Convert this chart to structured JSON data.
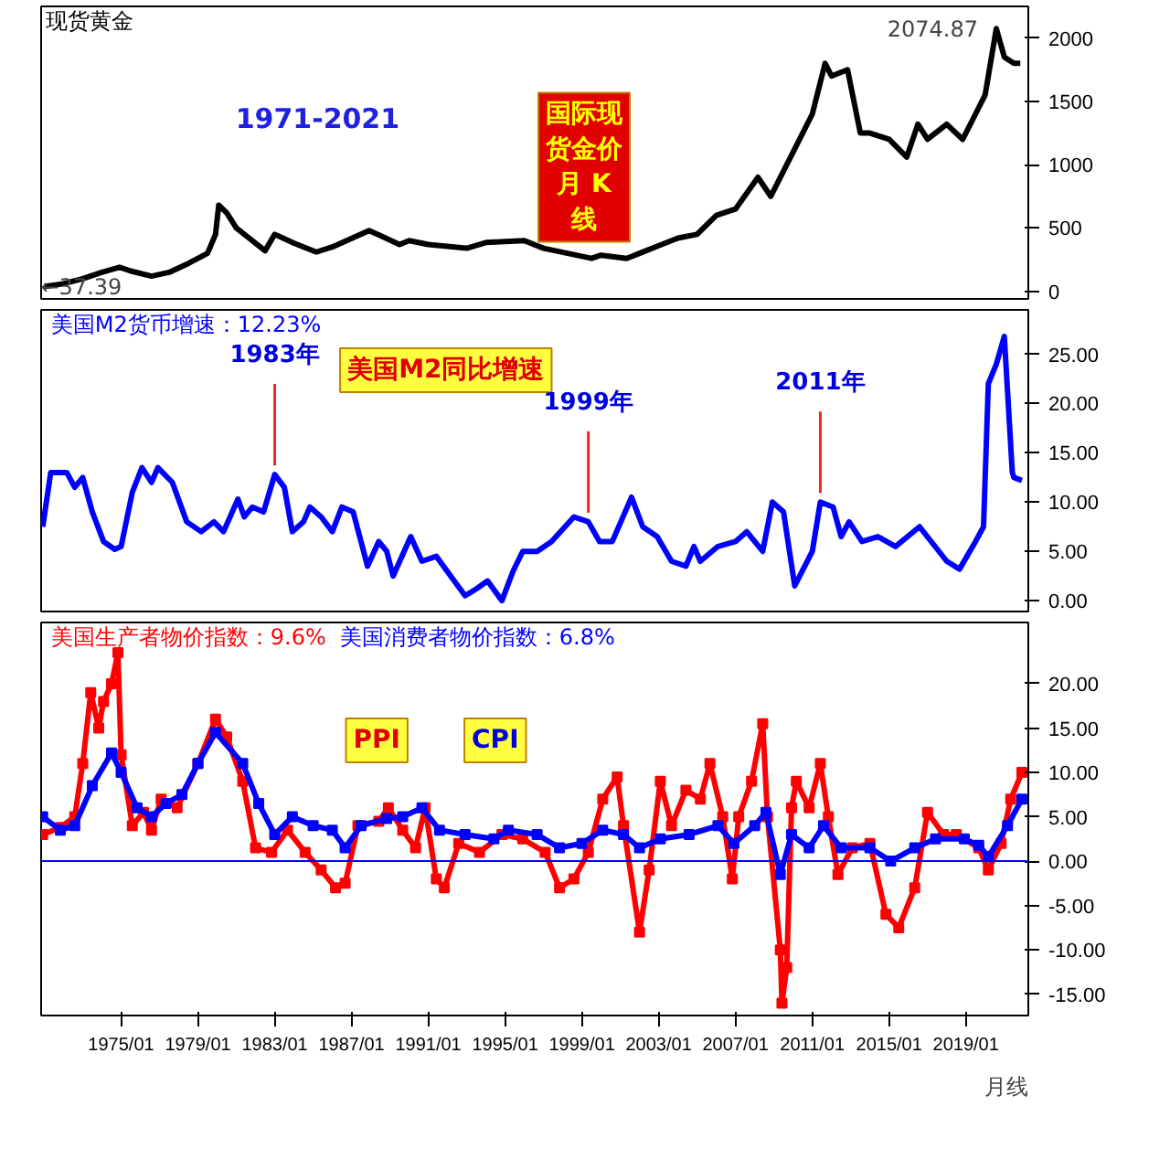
{
  "chart_data": [
    {
      "type": "line",
      "title": "现货黄金",
      "xlim": [
        "1970-11",
        "2022-04"
      ],
      "ylim": [
        -60,
        2250
      ],
      "yticks": [
        0,
        500,
        1000,
        1500,
        2000
      ],
      "tick_labels": "y",
      "grid": false,
      "annotations": [
        "1971-2021",
        "国际现货金价月 K线",
        {
          "text": "2074.87",
          "x": "2020-08",
          "y": 2075
        },
        {
          "text": "←37.39",
          "x": "1971-01",
          "y": 37
        }
      ],
      "series": [
        {
          "color": "#000000",
          "x": [
            "1971-01",
            "1972-01",
            "1973-01",
            "1974-01",
            "1974-12",
            "1975-07",
            "1976-08",
            "1977-07",
            "1978-07",
            "1979-07",
            "1979-12",
            "1980-02",
            "1980-07",
            "1981-01",
            "1982-07",
            "1983-01",
            "1984-01",
            "1985-03",
            "1986-01",
            "1987-12",
            "1988-07",
            "1989-07",
            "1990-01",
            "1991-01",
            "1993-01",
            "1994-01",
            "1996-01",
            "1997-01",
            "1999-07",
            "2000-01",
            "2001-05",
            "2002-01",
            "2003-01",
            "2004-01",
            "2005-01",
            "2006-01",
            "2007-01",
            "2008-03",
            "2008-11",
            "2009-07",
            "2010-01",
            "2011-01",
            "2011-09",
            "2012-01",
            "2012-11",
            "2013-07",
            "2014-01",
            "2015-01",
            "2015-12",
            "2016-07",
            "2017-01",
            "2018-01",
            "2018-11",
            "2019-07",
            "2020-01",
            "2020-08",
            "2021-01",
            "2021-07",
            "2021-11"
          ],
          "values": [
            37,
            60,
            100,
            150,
            190,
            160,
            120,
            150,
            220,
            300,
            450,
            680,
            620,
            500,
            320,
            450,
            380,
            310,
            350,
            480,
            440,
            370,
            400,
            370,
            340,
            385,
            400,
            340,
            260,
            285,
            260,
            300,
            360,
            420,
            450,
            600,
            650,
            900,
            750,
            950,
            1100,
            1400,
            1800,
            1700,
            1750,
            1250,
            1250,
            1200,
            1060,
            1320,
            1200,
            1320,
            1200,
            1400,
            1550,
            2075,
            1850,
            1800,
            1800
          ]
        }
      ]
    },
    {
      "type": "line",
      "xlim": [
        "1970-11",
        "2022-04"
      ],
      "ylim": [
        -1.1,
        29.5
      ],
      "yticks": [
        {
          "value": 0,
          "label": "0.00"
        },
        {
          "value": 5,
          "label": "5.00"
        },
        {
          "value": 10,
          "label": "10.00"
        },
        {
          "value": 15,
          "label": "15.00"
        },
        {
          "value": 20,
          "label": "20.00"
        },
        {
          "value": 25,
          "label": "25.00"
        }
      ],
      "tick_labels": "y",
      "grid": false,
      "legend": "top left",
      "annotations": [
        "美国M2同比增速",
        {
          "text": "1983年",
          "x": "1983-01",
          "y": 12.8
        },
        {
          "text": "1999年",
          "x": "1999-05",
          "y": 8
        },
        {
          "text": "2011年",
          "x": "2011-06",
          "y": 10
        }
      ],
      "series": [
        {
          "name": "美国M2货币增速：12.23%",
          "color": "#0000ff",
          "x": [
            "1970-12",
            "1971-05",
            "1972-03",
            "1972-08",
            "1973-01",
            "1973-07",
            "1974-02",
            "1974-09",
            "1975-01",
            "1975-08",
            "1976-02",
            "1976-08",
            "1976-12",
            "1977-09",
            "1978-06",
            "1979-03",
            "1979-11",
            "1980-05",
            "1981-02",
            "1981-06",
            "1981-11",
            "1982-06",
            "1983-01",
            "1983-07",
            "1983-12",
            "1984-07",
            "1984-11",
            "1985-06",
            "1986-01",
            "1986-07",
            "1987-02",
            "1987-11",
            "1988-06",
            "1988-11",
            "1989-03",
            "1990-02",
            "1990-09",
            "1991-06",
            "1992-03",
            "1992-12",
            "1993-07",
            "1994-02",
            "1994-11",
            "1995-06",
            "1995-12",
            "1996-09",
            "1997-06",
            "1998-08",
            "1999-05",
            "1999-12",
            "2000-08",
            "2001-08",
            "2002-03",
            "2002-12",
            "2003-09",
            "2004-06",
            "2004-11",
            "2005-03",
            "2006-02",
            "2007-01",
            "2007-08",
            "2008-06",
            "2008-12",
            "2009-07",
            "2010-02",
            "2011-01",
            "2011-06",
            "2012-02",
            "2012-07",
            "2012-12",
            "2013-08",
            "2014-06",
            "2015-05",
            "2016-08",
            "2018-01",
            "2018-09",
            "2019-07",
            "2019-12",
            "2020-03",
            "2020-08",
            "2021-01",
            "2021-06",
            "2021-07",
            "2021-12"
          ],
          "values": [
            7.5,
            13,
            13,
            11.5,
            12.5,
            9,
            6,
            5.2,
            5.5,
            11,
            13.5,
            12,
            13.5,
            12,
            8,
            7,
            8,
            7,
            10.3,
            8.5,
            9.5,
            9,
            12.8,
            11.5,
            7,
            8,
            9.5,
            8.5,
            7,
            9.5,
            9,
            3.5,
            6,
            5,
            2.5,
            6.5,
            4,
            4.5,
            2.5,
            0.5,
            1.2,
            2,
            0,
            3,
            5,
            5,
            6,
            8.5,
            8,
            6,
            6,
            10.5,
            7.5,
            6.5,
            4,
            3.5,
            5.5,
            4,
            5.5,
            6,
            7,
            5,
            10,
            9,
            1.5,
            5,
            10,
            9.5,
            6.5,
            8,
            6,
            6.5,
            5.5,
            7.5,
            4,
            3.2,
            6,
            7.5,
            22,
            24,
            26.8,
            13,
            12.5,
            12.2
          ]
        }
      ]
    },
    {
      "type": "line",
      "xlim": [
        "1970-11",
        "2022-04"
      ],
      "ylim": [
        -17.4,
        26.9
      ],
      "xticks": [
        {
          "value": "1975-01",
          "label": "1975/01"
        },
        {
          "value": "1979-01",
          "label": "1979/01"
        },
        {
          "value": "1983-01",
          "label": "1983/01"
        },
        {
          "value": "1987-01",
          "label": "1987/01"
        },
        {
          "value": "1991-01",
          "label": "1991/01"
        },
        {
          "value": "1995-01",
          "label": "1995/01"
        },
        {
          "value": "1999-01",
          "label": "1999/01"
        },
        {
          "value": "2003-01",
          "label": "2003/01"
        },
        {
          "value": "2007-01",
          "label": "2007/01"
        },
        {
          "value": "2011-01",
          "label": "2011/01"
        },
        {
          "value": "2015-01",
          "label": "2015/01"
        },
        {
          "value": "2019-01",
          "label": "2019/01"
        }
      ],
      "yticks": [
        {
          "value": -15,
          "label": "-15.00"
        },
        {
          "value": -10,
          "label": "-10.00"
        },
        {
          "value": -5,
          "label": "-5.00"
        },
        {
          "value": 0,
          "label": "0.00"
        },
        {
          "value": 5,
          "label": "5.00"
        },
        {
          "value": 10,
          "label": "10.00"
        },
        {
          "value": 15,
          "label": "15.00"
        },
        {
          "value": 20,
          "label": "20.00"
        }
      ],
      "grid": false,
      "legend": "top left",
      "marker": "square",
      "ref_lines": [
        {
          "axis": "y",
          "value": 0,
          "color": "#0000ff"
        }
      ],
      "annotations": [
        "PPI",
        "CPI",
        "月线"
      ],
      "series": [
        {
          "name": "美国生产者物价指数：9.6%",
          "color": "#ff0000",
          "x": [
            "1970-12",
            "1971-11",
            "1972-08",
            "1973-01",
            "1973-06",
            "1973-11",
            "1974-02",
            "1974-07",
            "1974-11",
            "1975-01",
            "1975-08",
            "1976-03",
            "1976-08",
            "1977-02",
            "1977-12",
            "1979-01",
            "1979-12",
            "1980-07",
            "1981-05",
            "1982-01",
            "1982-11",
            "1983-09",
            "1984-08",
            "1985-06",
            "1986-03",
            "1986-09",
            "1987-05",
            "1988-06",
            "1988-12",
            "1989-09",
            "1990-05",
            "1990-11",
            "1991-06",
            "1991-11",
            "1992-08",
            "1993-09",
            "1994-11",
            "1995-12",
            "1997-02",
            "1997-11",
            "1998-08",
            "1999-05",
            "2000-02",
            "2000-11",
            "2001-03",
            "2002-01",
            "2002-07",
            "2003-02",
            "2003-09",
            "2004-06",
            "2005-03",
            "2005-09",
            "2006-05",
            "2006-11",
            "2007-03",
            "2007-11",
            "2008-06",
            "2008-09",
            "2009-05",
            "2009-06",
            "2009-09",
            "2009-12",
            "2010-03",
            "2010-11",
            "2011-06",
            "2011-11",
            "2012-05",
            "2013-02",
            "2014-01",
            "2014-11",
            "2015-07",
            "2016-05",
            "2017-01",
            "2017-11",
            "2018-07",
            "2019-09",
            "2020-03",
            "2020-11",
            "2021-05",
            "2021-12"
          ],
          "values": [
            3,
            3.8,
            5,
            11,
            19,
            15,
            18,
            20,
            23.5,
            12,
            4,
            5.5,
            3.5,
            7,
            6,
            11,
            16,
            14,
            9,
            1.5,
            1,
            3.5,
            1,
            -1,
            -3,
            -2.5,
            4,
            4.5,
            6,
            3.5,
            1.5,
            6,
            -2,
            -3,
            2,
            1,
            3,
            2.5,
            1,
            -3,
            -2,
            1,
            7,
            9.5,
            4,
            -8,
            -1,
            9,
            4,
            8,
            7,
            11,
            5,
            -2,
            5,
            9,
            15.5,
            5,
            -10,
            -16,
            -12,
            6,
            9,
            6,
            11,
            5,
            -1.5,
            1.5,
            2,
            -6,
            -7.5,
            -3,
            5.5,
            3,
            3,
            1.5,
            -1,
            2,
            7,
            10
          ]
        },
        {
          "name": "美国消费者物价指数：6.8%",
          "color": "#0000ff",
          "x": [
            "1970-12",
            "1971-11",
            "1972-08",
            "1973-07",
            "1974-07",
            "1975-01",
            "1975-11",
            "1976-08",
            "1977-05",
            "1978-03",
            "1979-01",
            "1979-12",
            "1981-05",
            "1982-03",
            "1983-01",
            "1983-12",
            "1985-01",
            "1986-01",
            "1986-09",
            "1987-07",
            "1988-11",
            "1989-09",
            "1990-09",
            "1991-08",
            "1992-12",
            "1994-06",
            "1995-03",
            "1996-09",
            "1997-11",
            "1999-01",
            "2000-02",
            "2001-03",
            "2002-01",
            "2003-02",
            "2004-08",
            "2006-02",
            "2006-12",
            "2008-01",
            "2008-08",
            "2009-05",
            "2009-12",
            "2010-11",
            "2011-08",
            "2012-07",
            "2014-01",
            "2015-02",
            "2016-05",
            "2017-06",
            "2018-12",
            "2019-09",
            "2020-03",
            "2021-03",
            "2021-12"
          ],
          "values": [
            5,
            3.5,
            4,
            8.5,
            12.2,
            10,
            6,
            5,
            6.5,
            7.5,
            11,
            14.5,
            11,
            6.5,
            3,
            5,
            4,
            3.5,
            1.5,
            4,
            4.8,
            5,
            6,
            3.5,
            3,
            2.5,
            3.5,
            3,
            1.5,
            2,
            3.5,
            3,
            1.5,
            2.5,
            3,
            4,
            2,
            4,
            5.5,
            -1.5,
            3,
            1.5,
            4,
            1.5,
            1.5,
            0,
            1.5,
            2.5,
            2.5,
            1.8,
            0.5,
            4,
            7
          ]
        }
      ]
    }
  ]
}
